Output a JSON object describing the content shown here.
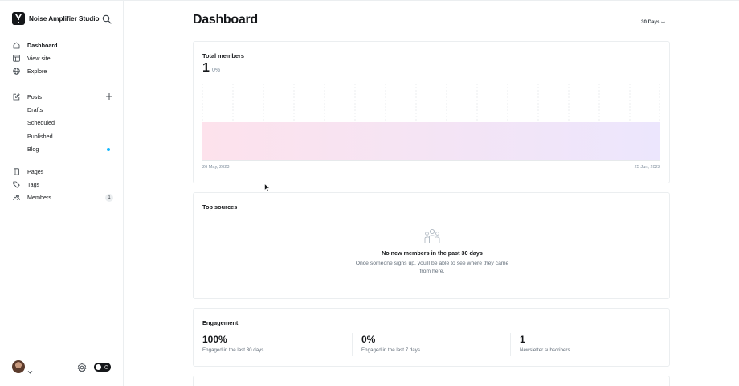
{
  "brand": {
    "name": "Noise Amplifier Studio"
  },
  "nav": {
    "primary": [
      {
        "id": "dashboard",
        "label": "Dashboard",
        "icon": "home-icon",
        "active": true
      },
      {
        "id": "view-site",
        "label": "View site",
        "icon": "browser-icon"
      },
      {
        "id": "explore",
        "label": "Explore",
        "icon": "globe-icon"
      }
    ],
    "posts": {
      "label": "Posts",
      "icon": "edit-icon",
      "sub": [
        {
          "id": "drafts",
          "label": "Drafts"
        },
        {
          "id": "scheduled",
          "label": "Scheduled"
        },
        {
          "id": "published",
          "label": "Published"
        },
        {
          "id": "blog",
          "label": "Blog",
          "dot_color": "#14b8ff"
        }
      ]
    },
    "secondary": [
      {
        "id": "pages",
        "label": "Pages",
        "icon": "pages-icon"
      },
      {
        "id": "tags",
        "label": "Tags",
        "icon": "tag-icon"
      },
      {
        "id": "members",
        "label": "Members",
        "icon": "members-icon",
        "count": "1"
      }
    ]
  },
  "header": {
    "title": "Dashboard",
    "range": "30 Days"
  },
  "members_card": {
    "title": "Total members",
    "value": "1",
    "delta": "0%",
    "start_date": "26 May, 2023",
    "end_date": "25 Jun, 2023"
  },
  "chart_data": {
    "type": "area",
    "x": [
      "26 May, 2023",
      "25 Jun, 2023"
    ],
    "series": [
      {
        "values": [
          1,
          1
        ]
      }
    ],
    "ylim": [
      0,
      2
    ],
    "grid": true,
    "colors": {
      "line_start": "#d6336c",
      "line_end": "#8e44ec",
      "fill_start": "#fde2ec",
      "fill_end": "#ece6fd"
    }
  },
  "sources_card": {
    "title": "Top sources",
    "empty_title": "No new members in the past 30 days",
    "empty_desc": "Once someone signs up, you'll be able to see where they came from here.",
    "icon": "people-icon"
  },
  "engagement_card": {
    "title": "Engagement",
    "metrics": [
      {
        "value": "100%",
        "label": "Engaged in the last 30 days"
      },
      {
        "value": "0%",
        "label": "Engaged in the last 7 days"
      },
      {
        "value": "1",
        "label": "Newsletter subscribers"
      }
    ]
  }
}
